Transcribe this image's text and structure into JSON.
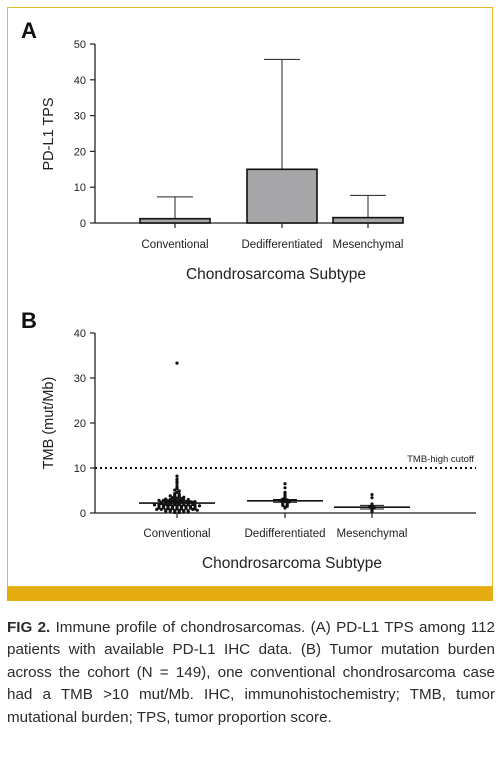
{
  "caption": {
    "label": "FIG 2.",
    "text": "Immune profile of chondrosarcomas. (A) PD-L1 TPS among 112 patients with available PD-L1 IHC data. (B) Tumor mutation burden across the cohort (N = 149), one conventional chondrosarcoma case had a TMB >10 mut/Mb. IHC, immunohistochemistry; TMB, tumor mutational burden; TPS, tumor proportion score."
  },
  "colors": {
    "frame": "#e8ba2a",
    "bar_strip": "#e5ad11",
    "bar_fill": "#a6a6a8"
  },
  "chart_data": [
    {
      "type": "bar",
      "panel_label": "A",
      "categories": [
        "Conventional",
        "Dedifferentiated",
        "Mesenchymal"
      ],
      "values": [
        1.2,
        15.0,
        1.5
      ],
      "error_upper": [
        7.3,
        45.7,
        7.7
      ],
      "xlabel": "Chondrosarcoma Subtype",
      "ylabel": "PD-L1 TPS",
      "ylim": [
        0,
        50
      ],
      "yticks": [
        0,
        10,
        20,
        30,
        40,
        50
      ],
      "grid": false
    },
    {
      "type": "scatter",
      "panel_label": "B",
      "categories": [
        "Conventional",
        "Dedifferentiated",
        "Mesenchymal"
      ],
      "series": [
        {
          "category": "Conventional",
          "median": 2.2,
          "error": [
            1.6,
            2.6
          ],
          "values": [
            33.3,
            8.2,
            7.5,
            7.0,
            6.6,
            6.0,
            5.7,
            5.4,
            5.1,
            4.9,
            4.6,
            4.3,
            4.2,
            4.0,
            3.9,
            3.8,
            3.7,
            3.6,
            3.5,
            3.4,
            3.3,
            3.2,
            3.1,
            3.0,
            3.0,
            2.9,
            2.9,
            2.8,
            2.8,
            2.7,
            2.7,
            2.6,
            2.6,
            2.5,
            2.5,
            2.4,
            2.4,
            2.3,
            2.3,
            2.2,
            2.2,
            2.1,
            2.1,
            2.0,
            2.0,
            1.9,
            1.9,
            1.8,
            1.8,
            1.7,
            1.7,
            1.6,
            1.6,
            1.5,
            1.5,
            1.4,
            1.4,
            1.3,
            1.3,
            1.2,
            1.2,
            1.1,
            1.1,
            1.0,
            1.0,
            0.9,
            0.9,
            0.8,
            0.8,
            0.7,
            0.7,
            0.6,
            0.6,
            0.5,
            0.5,
            0.4,
            0.4,
            0.3,
            0.3,
            0.2,
            0.2,
            0.1,
            0.1,
            1.5,
            1.0,
            2.0,
            2.5,
            1.3,
            0.8,
            1.7,
            2.2,
            3.0,
            1.1,
            0.6,
            1.4,
            1.9,
            2.4,
            0.9,
            1.2,
            1.6
          ]
        },
        {
          "category": "Dedifferentiated",
          "median": 2.7,
          "error": [
            2.4,
            3.0
          ],
          "values": [
            6.5,
            5.6,
            4.6,
            4.4,
            3.9,
            3.6,
            3.3,
            3.1,
            2.9,
            2.8,
            2.6,
            2.5,
            2.4,
            2.2,
            2.0,
            1.9,
            1.7,
            1.5,
            1.3,
            1.1
          ]
        },
        {
          "category": "Mesenchymal",
          "median": 1.3,
          "error": [
            0.9,
            1.7
          ],
          "values": [
            4.1,
            3.4,
            2.0,
            1.6,
            1.4,
            1.2,
            1.0,
            0.7,
            0.4
          ]
        }
      ],
      "cutoff": {
        "value": 10,
        "label": "TMB-high cutoff"
      },
      "xlabel": "Chondrosarcoma Subtype",
      "ylabel": "TMB (mut/Mb)",
      "ylim": [
        0,
        40
      ],
      "yticks": [
        0,
        10,
        20,
        30,
        40
      ],
      "grid": false
    }
  ]
}
